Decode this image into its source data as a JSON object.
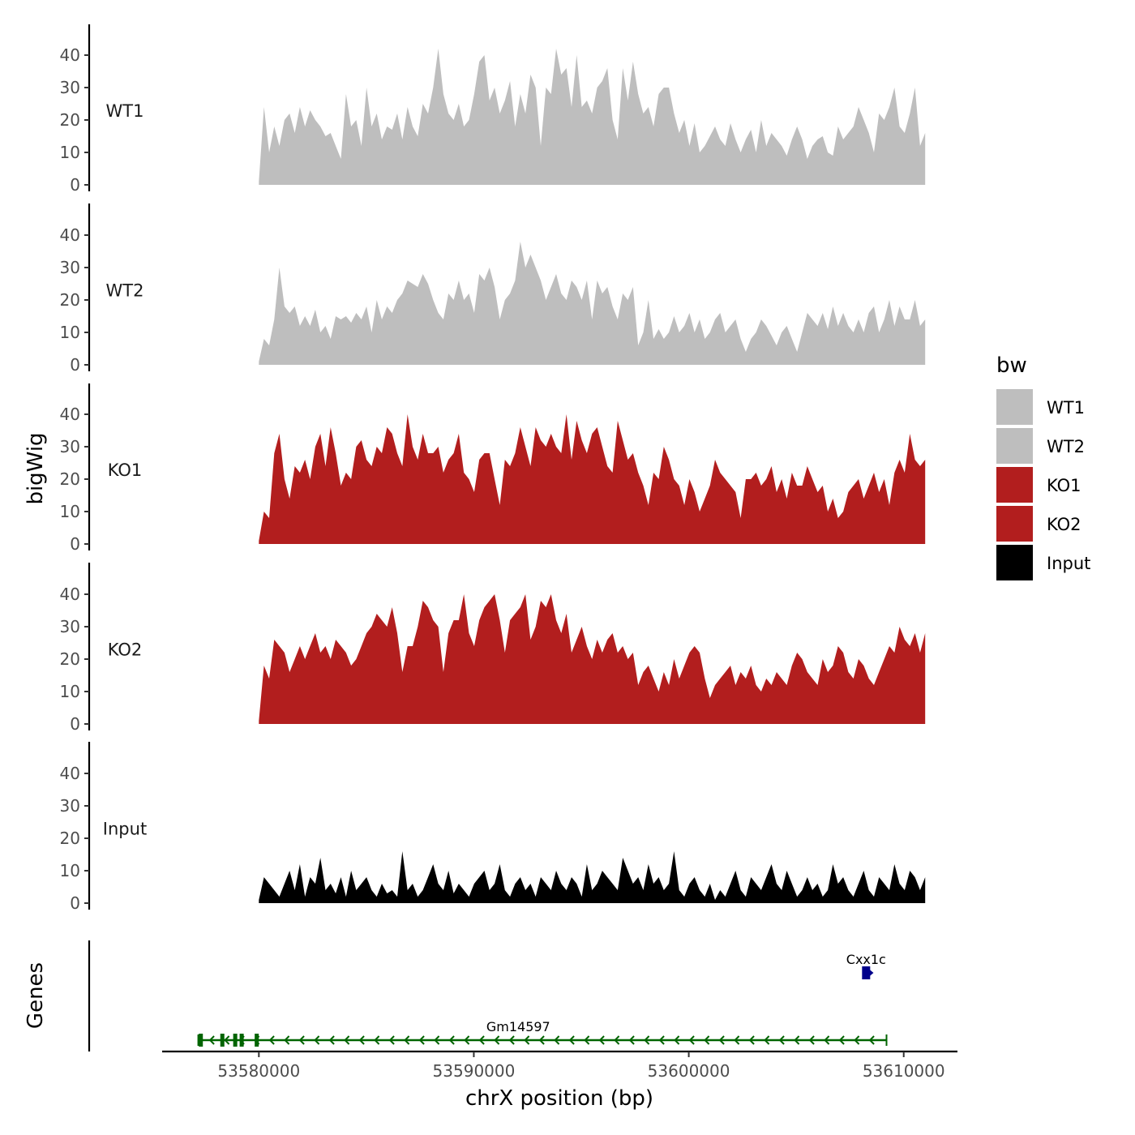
{
  "chart_data": {
    "type": "area",
    "title": "",
    "xlabel": "chrX position (bp)",
    "ylabel": "bigWig",
    "genes_label": "Genes",
    "xlim": [
      53575500,
      53612500
    ],
    "ylim": [
      0,
      48
    ],
    "x_ticks": [
      53580000,
      53590000,
      53600000,
      53610000
    ],
    "x_tick_labels": [
      "53580000",
      "53590000",
      "53600000",
      "53610000"
    ],
    "y_ticks": [
      0,
      10,
      20,
      30,
      40
    ],
    "y_tick_labels": [
      "0",
      "10",
      "20",
      "30",
      "40"
    ],
    "data_x_range": [
      53580000,
      53611000
    ],
    "legend": {
      "title": "bw",
      "position": "right",
      "entries": [
        {
          "label": "WT1",
          "color": "#bebebe"
        },
        {
          "label": "WT2",
          "color": "#bebebe"
        },
        {
          "label": "KO1",
          "color": "#b21e1e"
        },
        {
          "label": "KO2",
          "color": "#b21e1e"
        },
        {
          "label": "Input",
          "color": "#000000"
        }
      ]
    },
    "series": [
      {
        "name": "WT1",
        "color": "#bebebe",
        "values": [
          1,
          24,
          10,
          18,
          12,
          20,
          22,
          16,
          24,
          18,
          23,
          20,
          18,
          15,
          16,
          12,
          8,
          28,
          18,
          20,
          12,
          30,
          18,
          22,
          14,
          18,
          17,
          22,
          14,
          24,
          18,
          15,
          25,
          22,
          30,
          42,
          28,
          22,
          20,
          25,
          18,
          20,
          28,
          38,
          40,
          26,
          30,
          22,
          26,
          32,
          18,
          28,
          22,
          34,
          30,
          12,
          30,
          28,
          42,
          34,
          36,
          24,
          40,
          24,
          26,
          22,
          30,
          32,
          36,
          20,
          14,
          36,
          26,
          38,
          28,
          22,
          24,
          18,
          28,
          30,
          30,
          22,
          16,
          20,
          12,
          19,
          10,
          12,
          15,
          18,
          14,
          12,
          19,
          14,
          10,
          14,
          17,
          10,
          20,
          12,
          16,
          14,
          12,
          9,
          14,
          18,
          14,
          8,
          12,
          14,
          15,
          10,
          9,
          18,
          14,
          16,
          18,
          24,
          20,
          16,
          10,
          22,
          20,
          24,
          30,
          18,
          16,
          22,
          30,
          12,
          16
        ]
      },
      {
        "name": "WT2",
        "color": "#bebebe",
        "values": [
          1,
          8,
          6,
          14,
          30,
          18,
          16,
          18,
          12,
          15,
          12,
          17,
          10,
          12,
          8,
          15,
          14,
          15,
          13,
          16,
          14,
          18,
          10,
          20,
          14,
          18,
          16,
          20,
          22,
          26,
          25,
          24,
          28,
          25,
          20,
          16,
          14,
          22,
          20,
          26,
          20,
          22,
          16,
          28,
          26,
          30,
          24,
          14,
          20,
          22,
          26,
          38,
          30,
          34,
          30,
          26,
          20,
          24,
          28,
          22,
          20,
          26,
          24,
          20,
          26,
          14,
          26,
          22,
          24,
          18,
          14,
          22,
          20,
          24,
          6,
          10,
          20,
          8,
          11,
          8,
          10,
          15,
          10,
          12,
          16,
          10,
          14,
          8,
          10,
          14,
          16,
          10,
          12,
          14,
          8,
          4,
          8,
          10,
          14,
          12,
          9,
          6,
          10,
          12,
          8,
          4,
          10,
          16,
          14,
          12,
          16,
          11,
          18,
          12,
          16,
          12,
          10,
          14,
          10,
          16,
          18,
          10,
          14,
          20,
          12,
          18,
          14,
          14,
          20,
          12,
          14
        ]
      },
      {
        "name": "KO1",
        "color": "#b21e1e",
        "values": [
          1,
          10,
          8,
          28,
          34,
          20,
          14,
          24,
          22,
          26,
          20,
          30,
          34,
          24,
          36,
          28,
          18,
          22,
          20,
          30,
          32,
          26,
          24,
          30,
          28,
          36,
          34,
          28,
          24,
          40,
          30,
          26,
          34,
          28,
          28,
          30,
          22,
          26,
          28,
          34,
          22,
          20,
          16,
          26,
          28,
          28,
          20,
          12,
          26,
          24,
          28,
          36,
          30,
          24,
          36,
          32,
          30,
          34,
          30,
          28,
          40,
          26,
          38,
          32,
          28,
          34,
          36,
          30,
          24,
          22,
          38,
          32,
          26,
          28,
          22,
          18,
          12,
          22,
          20,
          30,
          26,
          20,
          18,
          12,
          20,
          16,
          10,
          14,
          18,
          26,
          22,
          20,
          18,
          16,
          8,
          20,
          20,
          22,
          18,
          20,
          24,
          16,
          20,
          14,
          22,
          18,
          18,
          24,
          20,
          16,
          18,
          10,
          14,
          8,
          10,
          16,
          18,
          20,
          14,
          18,
          22,
          16,
          20,
          12,
          22,
          26,
          22,
          34,
          26,
          24,
          26
        ]
      },
      {
        "name": "KO2",
        "color": "#b21e1e",
        "values": [
          1,
          18,
          14,
          26,
          24,
          22,
          16,
          20,
          24,
          20,
          24,
          28,
          22,
          24,
          20,
          26,
          24,
          22,
          18,
          20,
          24,
          28,
          30,
          34,
          32,
          30,
          36,
          28,
          16,
          24,
          24,
          30,
          38,
          36,
          32,
          30,
          16,
          28,
          32,
          32,
          40,
          28,
          24,
          32,
          36,
          38,
          40,
          32,
          22,
          32,
          34,
          36,
          40,
          26,
          30,
          38,
          36,
          40,
          32,
          28,
          34,
          22,
          26,
          30,
          24,
          20,
          26,
          22,
          26,
          28,
          22,
          24,
          20,
          22,
          12,
          16,
          18,
          14,
          10,
          16,
          12,
          20,
          14,
          18,
          22,
          24,
          22,
          14,
          8,
          12,
          14,
          16,
          18,
          12,
          16,
          14,
          18,
          12,
          10,
          14,
          12,
          16,
          14,
          12,
          18,
          22,
          20,
          16,
          14,
          12,
          20,
          16,
          18,
          24,
          22,
          16,
          14,
          20,
          18,
          14,
          12,
          16,
          20,
          24,
          22,
          30,
          26,
          24,
          28,
          22,
          28
        ]
      },
      {
        "name": "Input",
        "color": "#000000",
        "values": [
          1,
          8,
          6,
          4,
          2,
          6,
          10,
          4,
          12,
          2,
          8,
          6,
          14,
          4,
          6,
          3,
          8,
          2,
          10,
          4,
          6,
          8,
          4,
          2,
          6,
          3,
          4,
          2,
          16,
          4,
          6,
          2,
          4,
          8,
          12,
          6,
          4,
          10,
          3,
          6,
          4,
          2,
          6,
          8,
          10,
          4,
          6,
          12,
          4,
          2,
          6,
          8,
          4,
          6,
          2,
          8,
          6,
          4,
          10,
          6,
          4,
          8,
          6,
          2,
          12,
          4,
          6,
          10,
          8,
          6,
          4,
          14,
          10,
          6,
          8,
          4,
          12,
          6,
          8,
          4,
          6,
          16,
          4,
          2,
          6,
          8,
          4,
          2,
          6,
          1,
          4,
          2,
          6,
          10,
          4,
          2,
          8,
          6,
          4,
          8,
          12,
          6,
          4,
          10,
          6,
          2,
          4,
          8,
          4,
          6,
          2,
          4,
          12,
          6,
          8,
          4,
          2,
          6,
          10,
          4,
          2,
          8,
          6,
          4,
          12,
          6,
          4,
          10,
          8,
          4,
          8
        ]
      }
    ],
    "genes": [
      {
        "name": "Gm14597",
        "strand": "-",
        "start": 53577200,
        "end": 53609200,
        "color": "#006400",
        "exons": [
          53577300,
          53578300,
          53578900,
          53579200,
          53579900
        ]
      },
      {
        "name": "Cxx1c",
        "strand": "+",
        "start": 53608100,
        "end": 53608400,
        "color": "#00008b",
        "exons": [
          53608250
        ]
      }
    ]
  }
}
